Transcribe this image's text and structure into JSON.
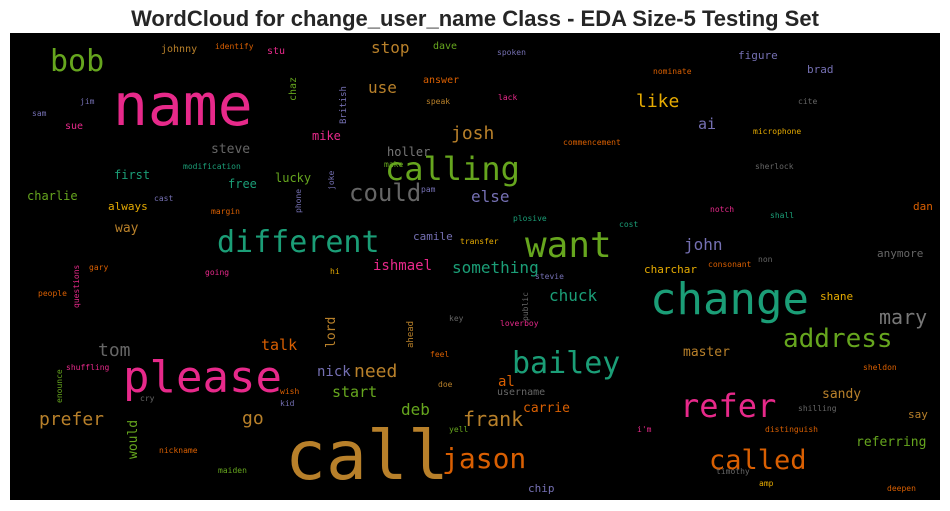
{
  "title": "WordCloud for change_user_name Class - EDA Size-5 Testing Set",
  "words": {
    "call": "call",
    "name": "name",
    "change": "change",
    "please": "please",
    "want": "want",
    "calling": "calling",
    "different": "different",
    "refer": "refer",
    "bailey": "bailey",
    "jason": "jason",
    "called": "called",
    "address": "address",
    "bob": "bob",
    "could": "could",
    "mary": "mary",
    "frank": "frank",
    "tom": "tom",
    "like": "like",
    "josh": "josh",
    "prefer": "prefer",
    "go": "go",
    "need": "need",
    "deb": "deb",
    "john": "john",
    "something": "something",
    "chuck": "chuck",
    "else": "else",
    "stop": "stop",
    "use": "use",
    "ai": "ai",
    "ishmael": "ishmael",
    "talk": "talk",
    "nick": "nick",
    "start": "start",
    "al": "al",
    "carrie": "carrie",
    "master": "master",
    "sandy": "sandy",
    "referring": "referring",
    "would": "would",
    "lord": "lord",
    "steve": "steve",
    "holler": "holler",
    "charlie": "charlie",
    "first": "first",
    "free": "free",
    "lucky": "lucky",
    "mike": "mike",
    "way": "way",
    "always": "always",
    "camile": "camile",
    "charchar": "charchar",
    "shane": "shane",
    "anymore": "anymore",
    "dan": "dan",
    "say": "say",
    "chip": "chip",
    "figure": "figure",
    "brad": "brad",
    "answer": "answer",
    "dave": "dave",
    "johnny": "johnny",
    "identify": "identify",
    "stu": "stu",
    "jim": "jim",
    "sam": "sam",
    "sue": "sue",
    "chaz": "chaz",
    "british": "British",
    "speak": "speak",
    "lack": "lack",
    "cite": "cite",
    "nominate": "nominate",
    "spoken": "spoken",
    "microphone": "microphone",
    "commencement": "commencement",
    "sherlock": "sherlock",
    "modification": "modification",
    "make": "make",
    "pam": "pam",
    "joke": "joke",
    "phone": "phone",
    "cast": "cast",
    "margin": "margin",
    "notch": "notch",
    "shall": "shall",
    "plosive": "plosive",
    "cost": "cost",
    "transfer": "transfer",
    "hi": "hi",
    "stevie": "stevie",
    "non": "non",
    "consonant": "consonant",
    "gary": "gary",
    "going": "going",
    "questions": "questions",
    "people": "people",
    "public": "public",
    "key": "key",
    "loverboy": "loverboy",
    "ahead": "ahead",
    "feel": "feel",
    "shuffling": "shuffling",
    "enounce": "enounce",
    "wish": "wish",
    "kid": "kid",
    "cry": "cry",
    "doe": "doe",
    "username": "username",
    "sheldon": "sheldon",
    "shilling": "shilling",
    "yell": "yell",
    "im": "i'm",
    "distinguish": "distinguish",
    "nickname": "nickname",
    "maiden": "maiden",
    "timothy": "timothy",
    "amp": "amp",
    "deepen": "deepen"
  }
}
